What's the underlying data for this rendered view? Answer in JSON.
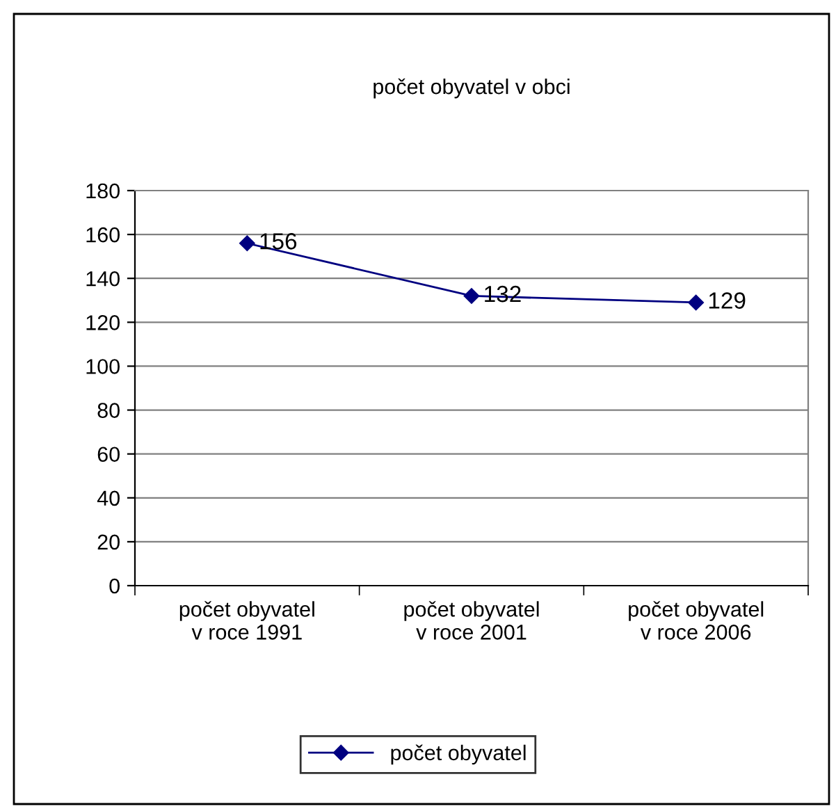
{
  "chart_data": {
    "type": "line",
    "title": "počet obyvatel v obci",
    "categories": [
      "počet obyvatel\nv roce 1991",
      "počet obyvatel\nv roce 2001",
      "počet obyvatel\nv roce 2006"
    ],
    "series": [
      {
        "name": "počet obyvatel",
        "color": "#000080",
        "values": [
          156,
          132,
          129
        ]
      }
    ],
    "ylim": [
      0,
      180
    ],
    "yticks": [
      0,
      20,
      40,
      60,
      80,
      100,
      120,
      140,
      160,
      180
    ],
    "grid": "y",
    "legend": "bottom",
    "marker": "diamond",
    "line_style": "solid",
    "data_labels": true
  }
}
